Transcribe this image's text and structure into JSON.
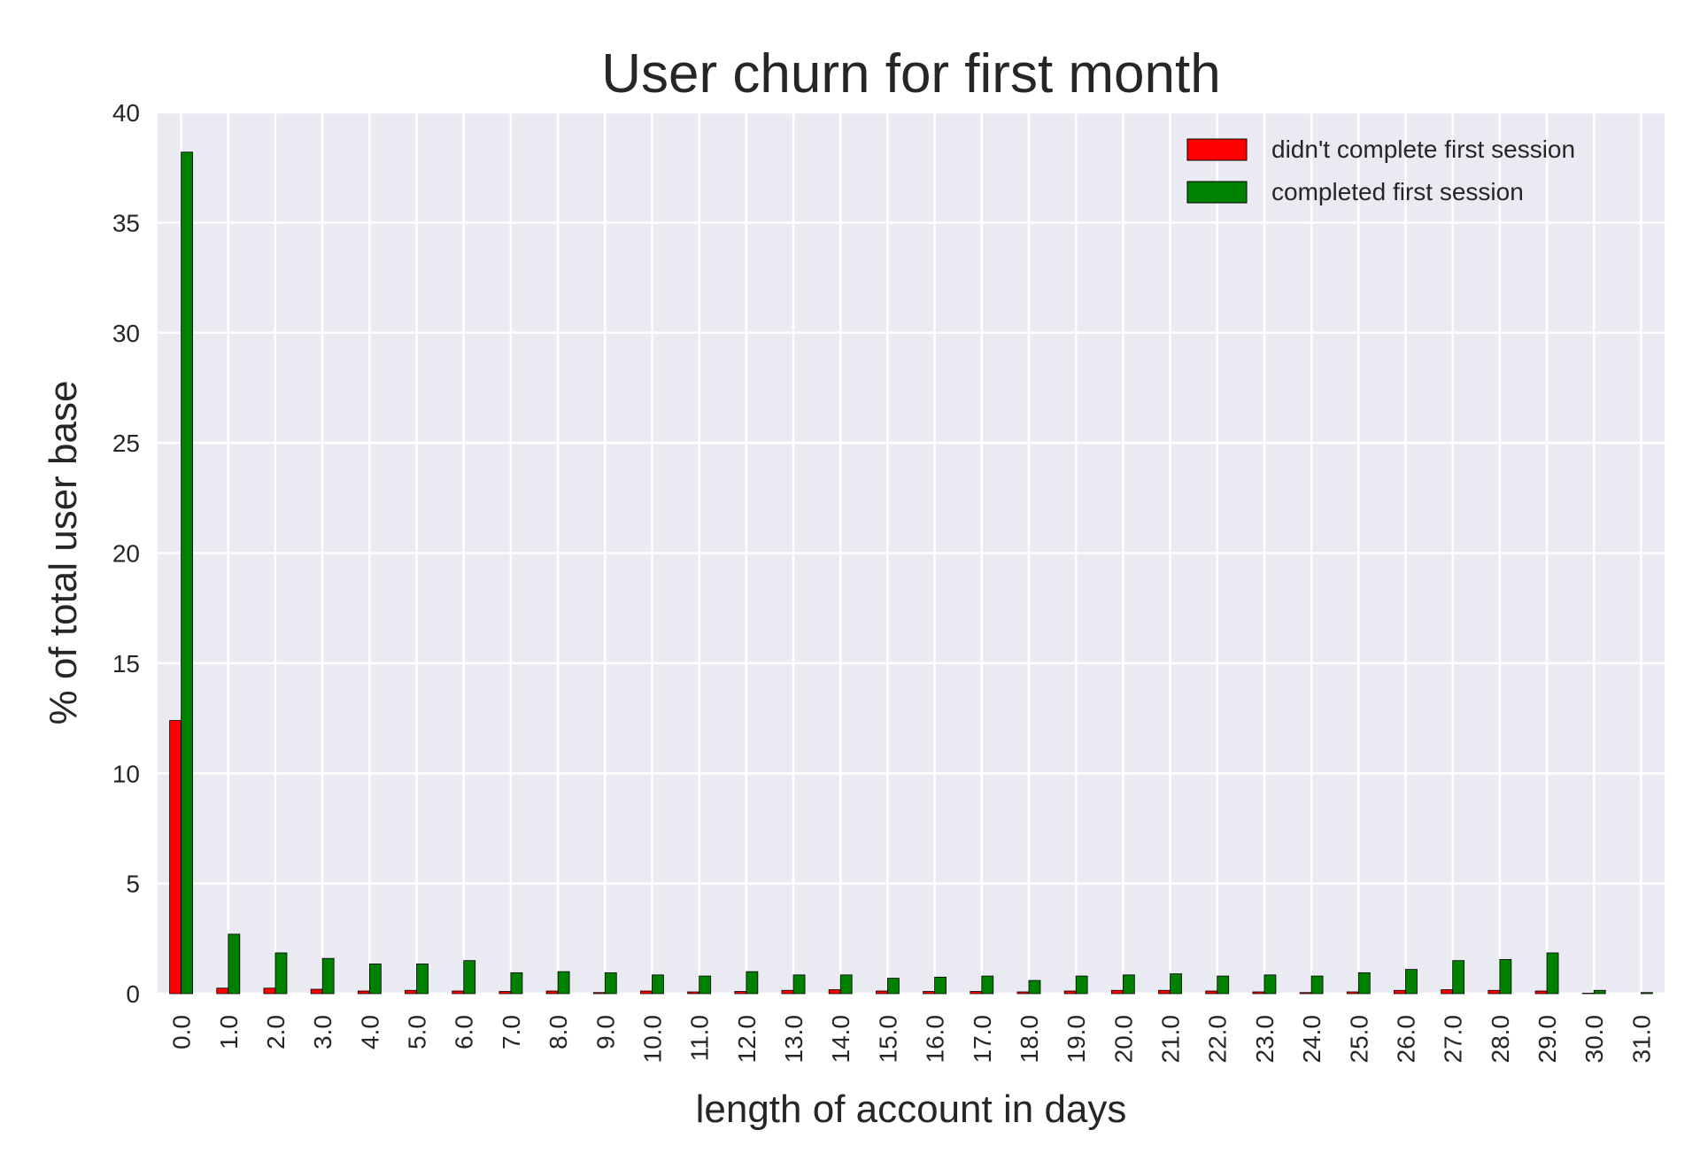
{
  "chart_data": {
    "type": "bar",
    "title": "User churn for first month",
    "xlabel": "length of account in days",
    "ylabel": "% of total user base",
    "ylim": [
      0,
      40
    ],
    "yticks": [
      0,
      5,
      10,
      15,
      20,
      25,
      30,
      35,
      40
    ],
    "grid": true,
    "legend_position": "top-right",
    "categories": [
      "0.0",
      "1.0",
      "2.0",
      "3.0",
      "4.0",
      "5.0",
      "6.0",
      "7.0",
      "8.0",
      "9.0",
      "10.0",
      "11.0",
      "12.0",
      "13.0",
      "14.0",
      "15.0",
      "16.0",
      "17.0",
      "18.0",
      "19.0",
      "20.0",
      "21.0",
      "22.0",
      "23.0",
      "24.0",
      "25.0",
      "26.0",
      "27.0",
      "28.0",
      "29.0",
      "30.0",
      "31.0"
    ],
    "series": [
      {
        "name": "didn't complete first session",
        "color": "#ff0000",
        "values": [
          12.4,
          0.25,
          0.25,
          0.2,
          0.12,
          0.15,
          0.12,
          0.1,
          0.12,
          0.05,
          0.12,
          0.08,
          0.1,
          0.15,
          0.18,
          0.12,
          0.1,
          0.1,
          0.08,
          0.12,
          0.15,
          0.15,
          0.12,
          0.08,
          0.05,
          0.08,
          0.15,
          0.18,
          0.15,
          0.12,
          0.02,
          0.0
        ]
      },
      {
        "name": "completed first session",
        "color": "#008000",
        "values": [
          38.2,
          2.7,
          1.85,
          1.6,
          1.35,
          1.35,
          1.5,
          0.95,
          1.0,
          0.95,
          0.85,
          0.8,
          1.0,
          0.85,
          0.85,
          0.7,
          0.75,
          0.8,
          0.6,
          0.8,
          0.85,
          0.9,
          0.8,
          0.85,
          0.8,
          0.95,
          1.1,
          1.5,
          1.55,
          1.85,
          0.15,
          0.05
        ]
      }
    ]
  },
  "colors": {
    "plot_background": "#eaeaf2",
    "grid": "#ffffff",
    "text": "#262626",
    "legend_box_background": "#eaeaf2"
  }
}
